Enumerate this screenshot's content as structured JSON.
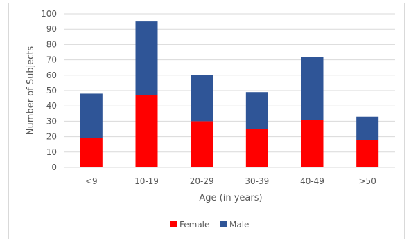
{
  "chart_data": {
    "type": "bar",
    "stacked": true,
    "categories": [
      "<9",
      "10-19",
      "20-29",
      "30-39",
      "40-49",
      ">50"
    ],
    "series": [
      {
        "name": "Female",
        "color": "#ff0000",
        "values": [
          19,
          47,
          30,
          25,
          31,
          18
        ]
      },
      {
        "name": "Male",
        "color": "#2f5597",
        "values": [
          29,
          48,
          30,
          24,
          41,
          15
        ]
      }
    ],
    "title": "",
    "xlabel": "Age (in years)",
    "ylabel": "Number of Subjects",
    "ylim": [
      0,
      100
    ],
    "yticks": [
      "0",
      "10",
      "20",
      "30",
      "40",
      "50",
      "60",
      "70",
      "80",
      "90",
      "100"
    ],
    "grid": true,
    "gridColor": "#d9d9d9",
    "legend_position": "bottom"
  }
}
